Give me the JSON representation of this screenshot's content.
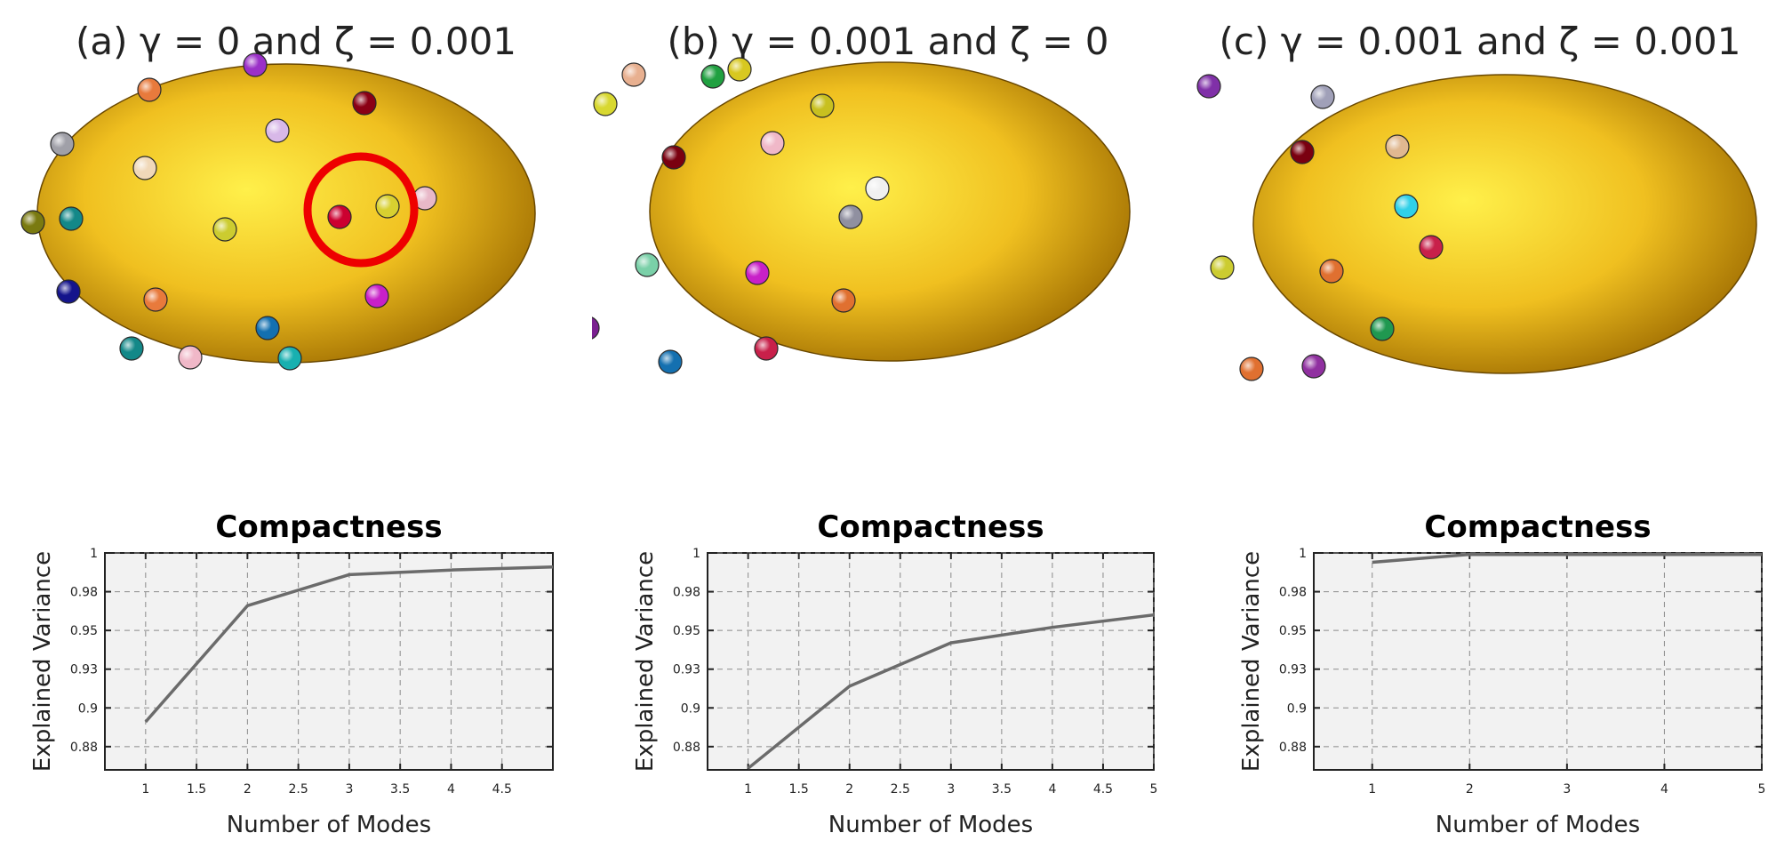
{
  "chart_data": [
    {
      "panel_title": "(a) γ = 0 and ζ = 0.001",
      "type": "line",
      "title": "Compactness",
      "xlabel": "Number of Modes",
      "ylabel": "Explained Variance",
      "x": [
        1,
        2,
        3,
        4,
        5
      ],
      "values": [
        0.891,
        0.966,
        0.986,
        0.989,
        0.991
      ],
      "xlim": [
        0.6,
        5.0
      ],
      "ylim": [
        0.86,
        1.0
      ],
      "xticks": [
        "1",
        "1.5",
        "2",
        "2.5",
        "3",
        "3.5",
        "4",
        "4.5"
      ],
      "xtick_values": [
        1,
        1.5,
        2,
        2.5,
        3,
        3.5,
        4,
        4.5
      ],
      "yticks": [
        "0.88",
        "0.9",
        "0.93",
        "0.95",
        "0.98",
        "1"
      ],
      "ytick_values": [
        0.875,
        0.9,
        0.925,
        0.95,
        0.975,
        1.0
      ],
      "grid": true,
      "line_color": "#6b6b6b",
      "highlight": "red-circle"
    },
    {
      "panel_title": "(b) γ = 0.001 and ζ = 0",
      "type": "line",
      "title": "Compactness",
      "xlabel": "Number of Modes",
      "ylabel": "Explained Variance",
      "x": [
        1,
        2,
        3,
        4,
        5
      ],
      "values": [
        0.861,
        0.914,
        0.942,
        0.952,
        0.96
      ],
      "xlim": [
        0.6,
        5.0
      ],
      "ylim": [
        0.86,
        1.0
      ],
      "xticks": [
        "1",
        "1.5",
        "2",
        "2.5",
        "3",
        "3.5",
        "4",
        "4.5",
        "5"
      ],
      "xtick_values": [
        1,
        1.5,
        2,
        2.5,
        3,
        3.5,
        4,
        4.5,
        5
      ],
      "yticks": [
        "0.88",
        "0.9",
        "0.93",
        "0.95",
        "0.98",
        "1"
      ],
      "ytick_values": [
        0.875,
        0.9,
        0.925,
        0.95,
        0.975,
        1.0
      ],
      "grid": true,
      "line_color": "#6b6b6b"
    },
    {
      "panel_title": "(c) γ = 0.001 and ζ = 0.001",
      "type": "line",
      "title": "Compactness",
      "xlabel": "Number of Modes",
      "ylabel": "Explained Variance",
      "x": [
        1,
        2,
        3,
        4,
        5
      ],
      "values": [
        0.994,
        0.999,
        0.999,
        0.999,
        0.999
      ],
      "xlim": [
        0.4,
        5.0
      ],
      "ylim": [
        0.86,
        1.0
      ],
      "xticks": [
        "1",
        "2",
        "3",
        "4",
        "5"
      ],
      "xtick_values": [
        1,
        2,
        3,
        4,
        5
      ],
      "yticks": [
        "0.88",
        "0.9",
        "0.93",
        "0.95",
        "0.98",
        "1"
      ],
      "ytick_values": [
        0.875,
        0.9,
        0.925,
        0.95,
        0.975,
        1.0
      ],
      "grid": true,
      "line_color": "#6b6b6b"
    }
  ],
  "colors": {
    "spheroid_light": "#fff04a",
    "spheroid_mid": "#f0c020",
    "spheroid_dark": "#9c6a00",
    "plot_background": "#f2f2f2",
    "highlight": "#ee0000"
  }
}
